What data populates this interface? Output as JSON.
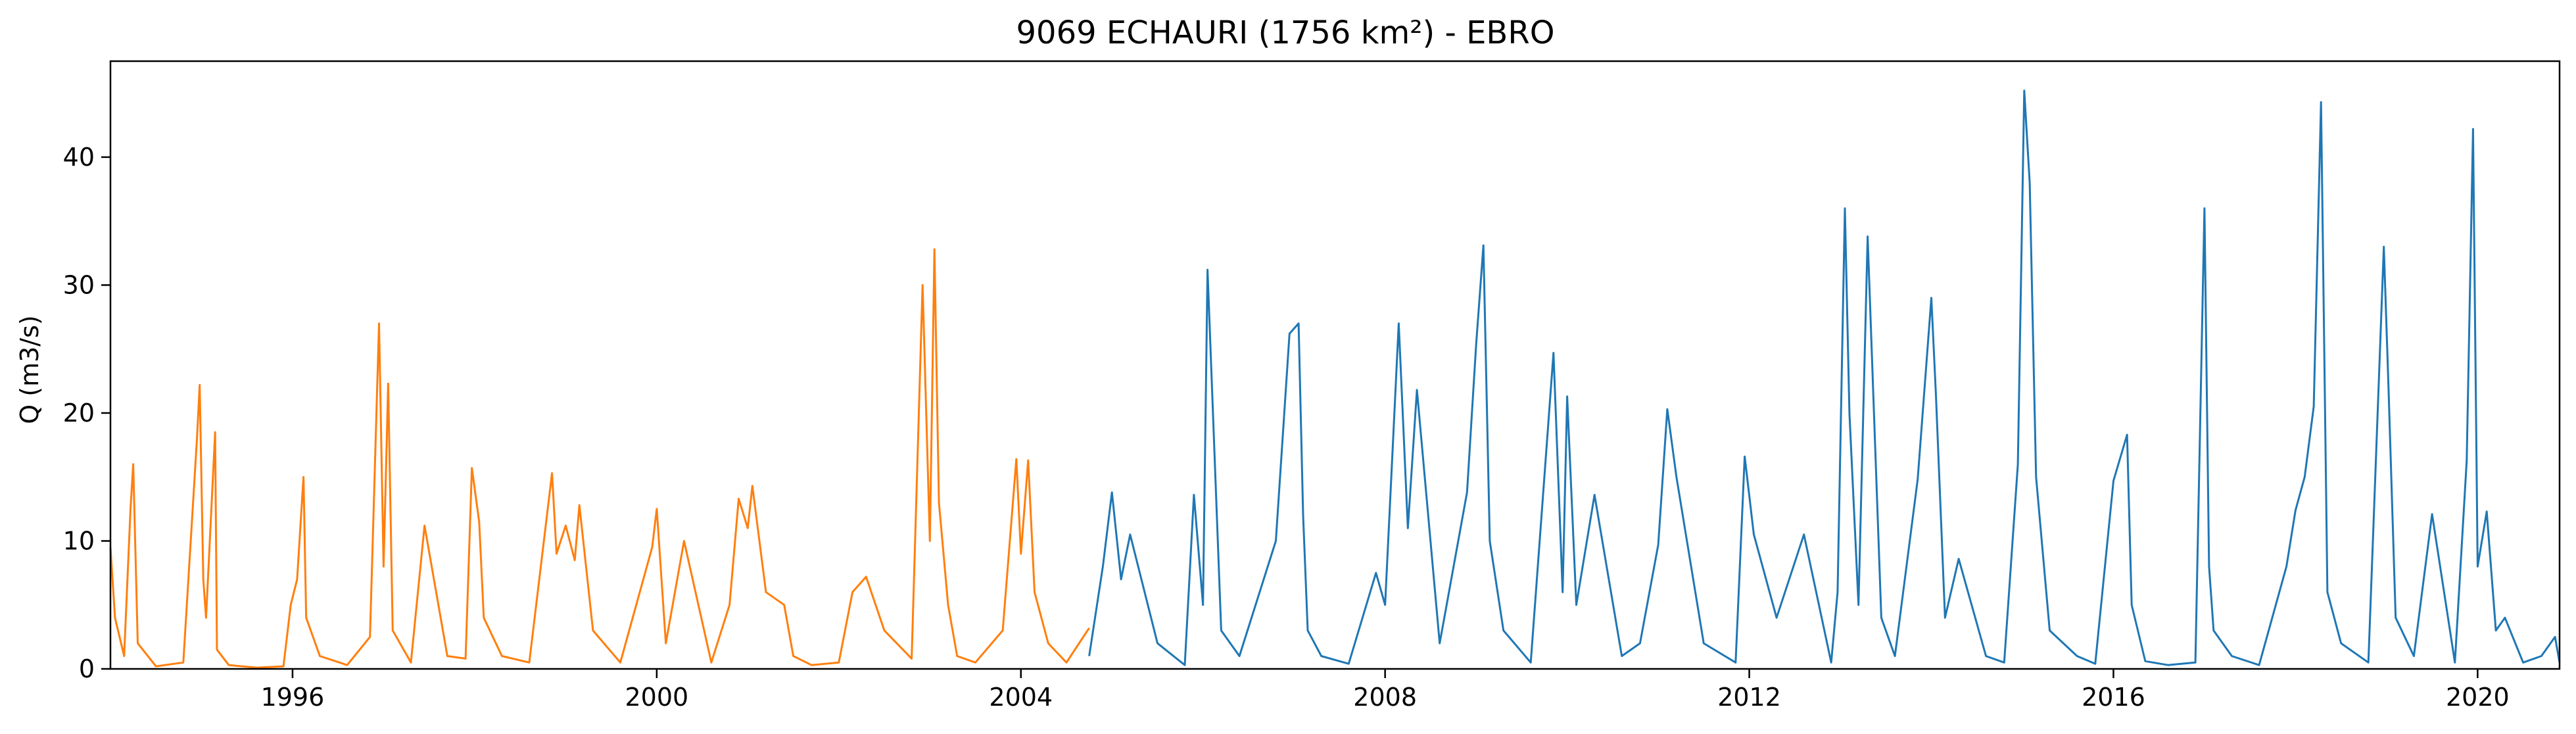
{
  "chart_data": {
    "type": "line",
    "title": "9069 ECHAURI (1756 km²) - EBRO",
    "xlabel": "",
    "ylabel": "Q (m3/s)",
    "xlim": [
      1994.0,
      2020.9
    ],
    "ylim": [
      0,
      47.5
    ],
    "x_ticks": [
      1996,
      2000,
      2004,
      2008,
      2012,
      2016,
      2020
    ],
    "y_ticks": [
      0,
      10,
      20,
      30,
      40
    ],
    "grid": false,
    "legend": "none",
    "colors": {
      "orange": "#ff7f0e",
      "blue": "#1f77b4"
    },
    "series": [
      {
        "color": "orange",
        "x": [
          1994.0,
          1994.05,
          1994.15,
          1994.22,
          1994.25,
          1994.3,
          1994.5,
          1994.8,
          1994.95,
          1994.98,
          1995.02,
          1995.05,
          1995.15,
          1995.17,
          1995.3,
          1995.6,
          1995.9,
          1995.98,
          1996.05,
          1996.12,
          1996.15,
          1996.3,
          1996.6,
          1996.85,
          1996.95,
          1997.0,
          1997.05,
          1997.1,
          1997.3,
          1997.45,
          1997.7,
          1997.9,
          1997.97,
          1998.05,
          1998.1,
          1998.3,
          1998.6,
          1998.85,
          1998.9,
          1999.0,
          1999.1,
          1999.15,
          1999.3,
          1999.6,
          1999.95,
          2000.0,
          2000.1,
          2000.3,
          2000.6,
          2000.8,
          2000.9,
          2001.0,
          2001.05,
          2001.2,
          2001.4,
          2001.5,
          2001.7,
          2002.0,
          2002.15,
          2002.3,
          2002.5,
          2002.8,
          2002.92,
          2003.0,
          2003.05,
          2003.1,
          2003.2,
          2003.3,
          2003.5,
          2003.8,
          2003.95,
          2004.0,
          2004.08,
          2004.15,
          2004.3,
          2004.5,
          2004.75
        ],
        "y": [
          9.5,
          4.0,
          1.0,
          12.5,
          16.0,
          2.0,
          0.2,
          0.5,
          18.0,
          22.2,
          7.0,
          4.0,
          18.5,
          1.5,
          0.3,
          0.1,
          0.2,
          5.0,
          7.0,
          15.0,
          4.0,
          1.0,
          0.3,
          2.5,
          27.0,
          8.0,
          22.3,
          3.0,
          0.5,
          11.2,
          1.0,
          0.8,
          15.7,
          11.5,
          4.0,
          1.0,
          0.5,
          15.3,
          9.0,
          11.2,
          8.5,
          12.8,
          3.0,
          0.5,
          9.5,
          12.5,
          2.0,
          10.0,
          0.5,
          5.0,
          13.3,
          11.0,
          14.3,
          6.0,
          5.0,
          1.0,
          0.3,
          0.5,
          6.0,
          7.2,
          3.0,
          0.8,
          30.0,
          10.0,
          32.8,
          13.0,
          5.0,
          1.0,
          0.5,
          3.0,
          16.4,
          9.0,
          16.3,
          6.0,
          2.0,
          0.5,
          3.2
        ]
      },
      {
        "color": "blue",
        "x": [
          2004.75,
          2004.9,
          2005.0,
          2005.1,
          2005.2,
          2005.5,
          2005.8,
          2005.9,
          2006.0,
          2006.05,
          2006.2,
          2006.4,
          2006.8,
          2006.95,
          2007.05,
          2007.1,
          2007.15,
          2007.3,
          2007.6,
          2007.9,
          2008.0,
          2008.15,
          2008.25,
          2008.35,
          2008.6,
          2008.9,
          2009.0,
          2009.08,
          2009.15,
          2009.3,
          2009.6,
          2009.85,
          2009.95,
          2010.0,
          2010.1,
          2010.3,
          2010.6,
          2010.8,
          2011.0,
          2011.1,
          2011.2,
          2011.5,
          2011.85,
          2011.95,
          2012.05,
          2012.3,
          2012.6,
          2012.9,
          2012.97,
          2013.05,
          2013.1,
          2013.2,
          2013.3,
          2013.45,
          2013.6,
          2013.85,
          2014.0,
          2014.05,
          2014.15,
          2014.3,
          2014.6,
          2014.8,
          2014.95,
          2015.02,
          2015.08,
          2015.15,
          2015.3,
          2015.6,
          2015.8,
          2016.0,
          2016.15,
          2016.2,
          2016.35,
          2016.6,
          2016.9,
          2017.0,
          2017.05,
          2017.1,
          2017.3,
          2017.6,
          2017.9,
          2018.0,
          2018.1,
          2018.2,
          2018.28,
          2018.35,
          2018.5,
          2018.8,
          2018.97,
          2019.02,
          2019.1,
          2019.3,
          2019.5,
          2019.75,
          2019.88,
          2019.95,
          2020.0,
          2020.1,
          2020.2,
          2020.3,
          2020.5,
          2020.7,
          2020.85,
          2020.9
        ],
        "y": [
          1.0,
          8.0,
          13.8,
          7.0,
          10.5,
          2.0,
          0.3,
          13.6,
          5.0,
          31.2,
          3.0,
          1.0,
          10.0,
          26.2,
          27.0,
          12.0,
          3.0,
          1.0,
          0.4,
          7.5,
          5.0,
          27.0,
          11.0,
          21.8,
          2.0,
          13.8,
          25.3,
          33.1,
          10.0,
          3.0,
          0.5,
          24.7,
          6.0,
          21.3,
          5.0,
          13.6,
          1.0,
          2.0,
          9.7,
          20.3,
          15.0,
          2.0,
          0.5,
          16.6,
          10.5,
          4.0,
          10.5,
          0.5,
          6.0,
          36.0,
          20.0,
          5.0,
          33.8,
          4.0,
          1.0,
          14.8,
          29.0,
          21.5,
          4.0,
          8.6,
          1.0,
          0.5,
          16.0,
          45.2,
          38.0,
          15.0,
          3.0,
          1.0,
          0.4,
          14.7,
          18.3,
          5.0,
          0.6,
          0.3,
          0.5,
          36.0,
          8.0,
          3.0,
          1.0,
          0.3,
          8.0,
          12.4,
          15.0,
          20.5,
          44.3,
          6.0,
          2.0,
          0.5,
          33.0,
          22.2,
          4.0,
          1.0,
          12.1,
          0.5,
          16.3,
          42.2,
          8.0,
          12.3,
          3.0,
          4.0,
          0.5,
          1.0,
          2.5,
          0.5
        ]
      }
    ]
  }
}
